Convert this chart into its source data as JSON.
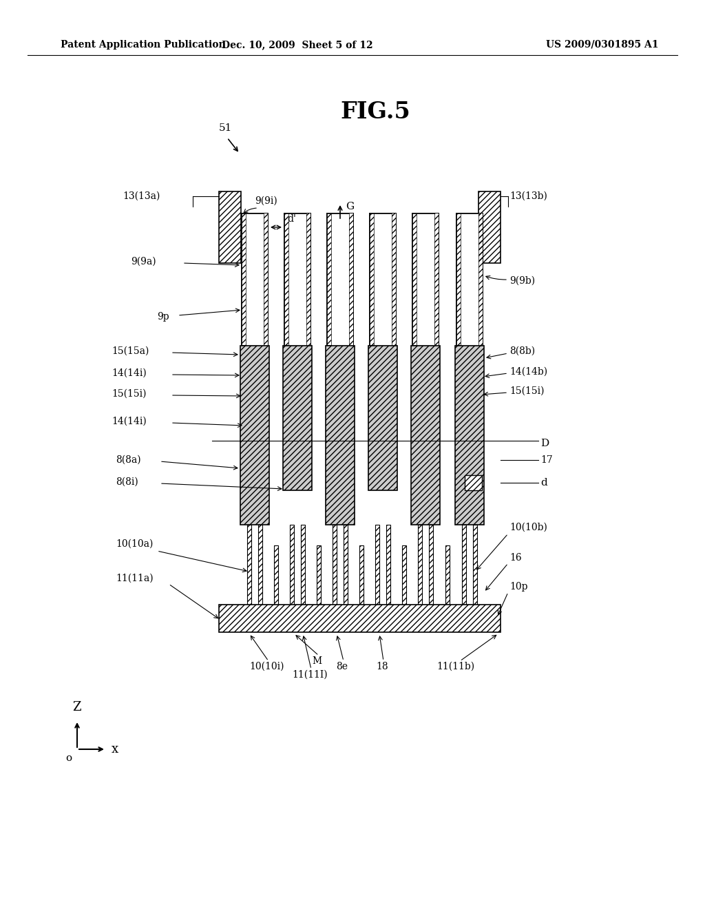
{
  "header_left": "Patent Application Publication",
  "header_mid": "Dec. 10, 2009  Sheet 5 of 12",
  "header_right": "US 2009/0301895 A1",
  "title": "FIG.5",
  "fig_num": "51",
  "bg": "#ffffff",
  "lc": "#000000",
  "labels": {
    "13a": "13(13a)",
    "13b": "13(13b)",
    "9i": "9(9i)",
    "9a": "9(9a)",
    "9b": "9(9b)",
    "9p": "9p",
    "15a": "15(15a)",
    "14i1": "14(14i)",
    "15i1": "15(15i)",
    "14i2": "14(14i)",
    "8a": "8(8a)",
    "8i": "8(8i)",
    "8b": "8(8b)",
    "14b": "14(14b)",
    "15i2": "15(15i)",
    "D": "D",
    "17": "17",
    "d_dim": "d",
    "10a": "10(10a)",
    "10b": "10(10b)",
    "10p": "10p",
    "16": "16",
    "11a": "11(11a)",
    "11b": "11(11b)",
    "10i": "10(10i)",
    "11i": "11(11I)",
    "8e": "8e",
    "18": "18",
    "M": "M",
    "G": "G",
    "dp": "d'",
    "Z": "Z",
    "X": "x",
    "O": "o"
  }
}
